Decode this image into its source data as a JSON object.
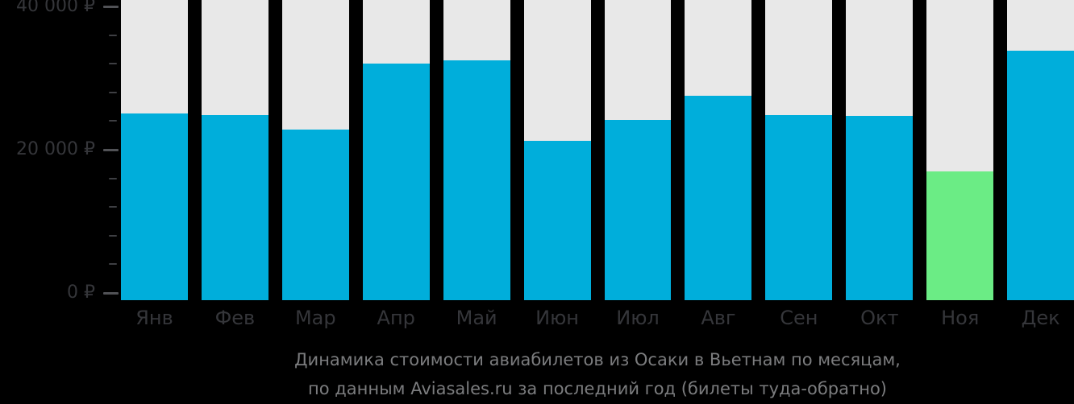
{
  "chart_data": {
    "type": "bar",
    "title": "Динамика стоимости авиабилетов из Осаки в Вьетнам по месяцам,",
    "subtitle": "по данным Aviasales.ru за последний год (билеты туда-обратно)",
    "categories": [
      "Янв",
      "Фев",
      "Мар",
      "Апр",
      "Май",
      "Июн",
      "Июл",
      "Авг",
      "Сен",
      "Окт",
      "Ноя",
      "Дек"
    ],
    "values": [
      25100,
      24800,
      22800,
      32000,
      32500,
      21200,
      24200,
      27500,
      24800,
      24700,
      17000,
      33800
    ],
    "highlight_index": 10,
    "unit": "₽",
    "xlabel": "",
    "ylabel": "",
    "ylim": [
      0,
      40000
    ],
    "grid": false,
    "legend": false,
    "y_axis": {
      "major_ticks": [
        {
          "value": 0,
          "label": "0 ₽"
        },
        {
          "value": 20000,
          "label": "20 000 ₽"
        },
        {
          "value": 40000,
          "label": "40 000 ₽"
        }
      ],
      "minor_tick_step": 4000
    },
    "colors": {
      "bar": "#00AEDB",
      "bar_highlight": "#6BEC85",
      "track": "#E8E8E8",
      "background": "#000000",
      "axis_text": "#35363A",
      "caption_text": "#7B7C7E",
      "tick_major": "#515256",
      "tick_minor": "#3E3F43"
    }
  }
}
